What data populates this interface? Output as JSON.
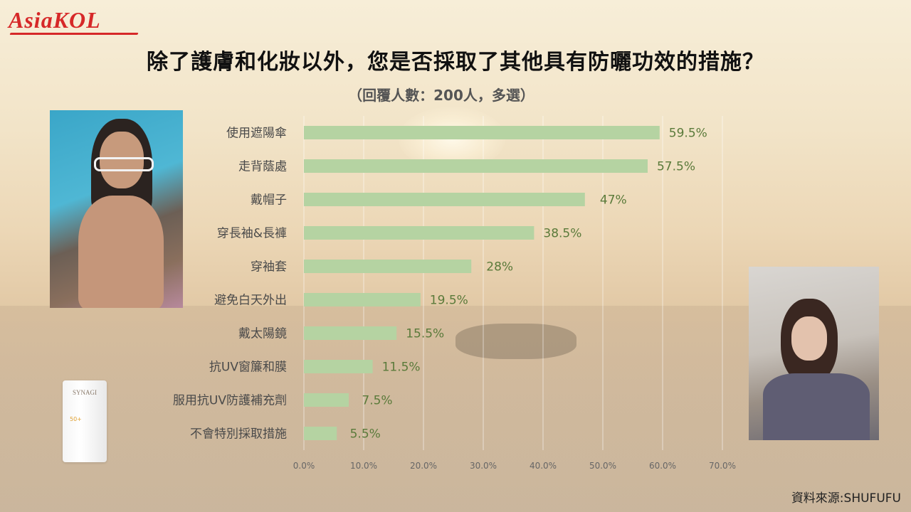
{
  "logo": "AsiaKOL",
  "chart_data": {
    "type": "bar",
    "orientation": "horizontal",
    "title": "除了護膚和化妝以外，您是否採取了其他具有防曬功效的措施？",
    "subtitle": "（回覆人數：200人，多選）",
    "categories": [
      "使用遮陽傘",
      "走背蔭處",
      "戴帽子",
      "穿長袖&長褲",
      "穿袖套",
      "避免白天外出",
      "戴太陽鏡",
      "抗UV窗簾和膜",
      "服用抗UV防護補充劑",
      "不會特別採取措施"
    ],
    "values": [
      59.5,
      57.5,
      47,
      38.5,
      28,
      19.5,
      15.5,
      11.5,
      7.5,
      5.5
    ],
    "data_labels": [
      "59.5%",
      "57.5%",
      "47%",
      "38.5%",
      "28%",
      "19.5%",
      "15.5%",
      "11.5%",
      "7.5%",
      "5.5%"
    ],
    "xlim": [
      0,
      70
    ],
    "xticks": [
      0,
      10,
      20,
      30,
      40,
      50,
      60,
      70
    ],
    "xtick_labels": [
      "0.0%",
      "10.0%",
      "20.0%",
      "30.0%",
      "40.0%",
      "50.0%",
      "60.0%",
      "70.0%"
    ],
    "grid": true,
    "bar_color": "#b5d3a2",
    "label_color": "#5a7a3a"
  },
  "product": {
    "brand": "SYNAGI",
    "spf": "50+"
  },
  "source": "資料來源:SHUFUFU"
}
